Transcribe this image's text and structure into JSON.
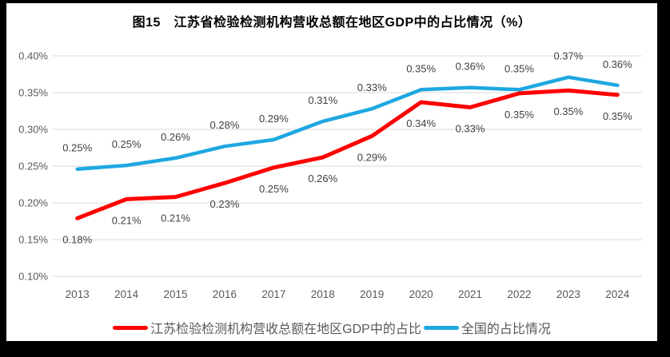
{
  "title": "图15　江苏省检验检测机构营收总额在地区GDP中的占比情况（%）",
  "colors": {
    "jiangsu_red": "#FE0000",
    "national_blue": "#1EA7E1",
    "gridline": "#D9D9D9",
    "axis_text": "#595959",
    "data_label": "#404040",
    "frame_border": "#000000",
    "background": "#FFFFFF"
  },
  "chart_data": {
    "type": "line",
    "title": "图15　江苏省检验检测机构营收总额在地区GDP中的占比情况（%）",
    "categories": [
      "2013",
      "2014",
      "2015",
      "2016",
      "2017",
      "2018",
      "2019",
      "2020",
      "2021",
      "2022",
      "2023",
      "2024"
    ],
    "xlabel": "",
    "ylabel": "",
    "ylim": [
      0.1,
      0.4
    ],
    "yticks": [
      {
        "label": "0.40%",
        "value": 0.4
      },
      {
        "label": "0.35%",
        "value": 0.35
      },
      {
        "label": "0.30%",
        "value": 0.3
      },
      {
        "label": "0.25%",
        "value": 0.25
      },
      {
        "label": "0.20%",
        "value": 0.2
      },
      {
        "label": "0.15%",
        "value": 0.15
      },
      {
        "label": "0.10%",
        "value": 0.1
      }
    ],
    "grid": true,
    "legend_position": "bottom",
    "series": [
      {
        "name": "江苏检验检测机构营收总额在地区GDP中的占比",
        "color": "#FE0000",
        "stroke_width": 5,
        "label_side": "below",
        "values": [
          0.18,
          0.21,
          0.21,
          0.23,
          0.25,
          0.26,
          0.29,
          0.34,
          0.33,
          0.35,
          0.35,
          0.35
        ],
        "point_labels": [
          "0.18%",
          "0.21%",
          "0.21%",
          "0.23%",
          "0.25%",
          "0.26%",
          "0.29%",
          "0.34%",
          "0.33%",
          "0.35%",
          "0.35%",
          "0.35%"
        ],
        "values_plot": [
          0.179,
          0.205,
          0.208,
          0.227,
          0.248,
          0.262,
          0.291,
          0.337,
          0.33,
          0.349,
          0.353,
          0.347
        ]
      },
      {
        "name": "全国的占比情况",
        "color": "#1EA7E1",
        "stroke_width": 4.5,
        "label_side": "above",
        "values": [
          0.25,
          0.25,
          0.26,
          0.28,
          0.29,
          0.31,
          0.33,
          0.35,
          0.36,
          0.35,
          0.37,
          0.36
        ],
        "point_labels": [
          "0.25%",
          "0.25%",
          "0.26%",
          "0.28%",
          "0.29%",
          "0.31%",
          "0.33%",
          "0.35%",
          "0.36%",
          "0.35%",
          "0.37%",
          "0.36%"
        ],
        "values_plot": [
          0.246,
          0.251,
          0.261,
          0.277,
          0.286,
          0.311,
          0.328,
          0.354,
          0.357,
          0.354,
          0.371,
          0.36
        ]
      }
    ]
  }
}
